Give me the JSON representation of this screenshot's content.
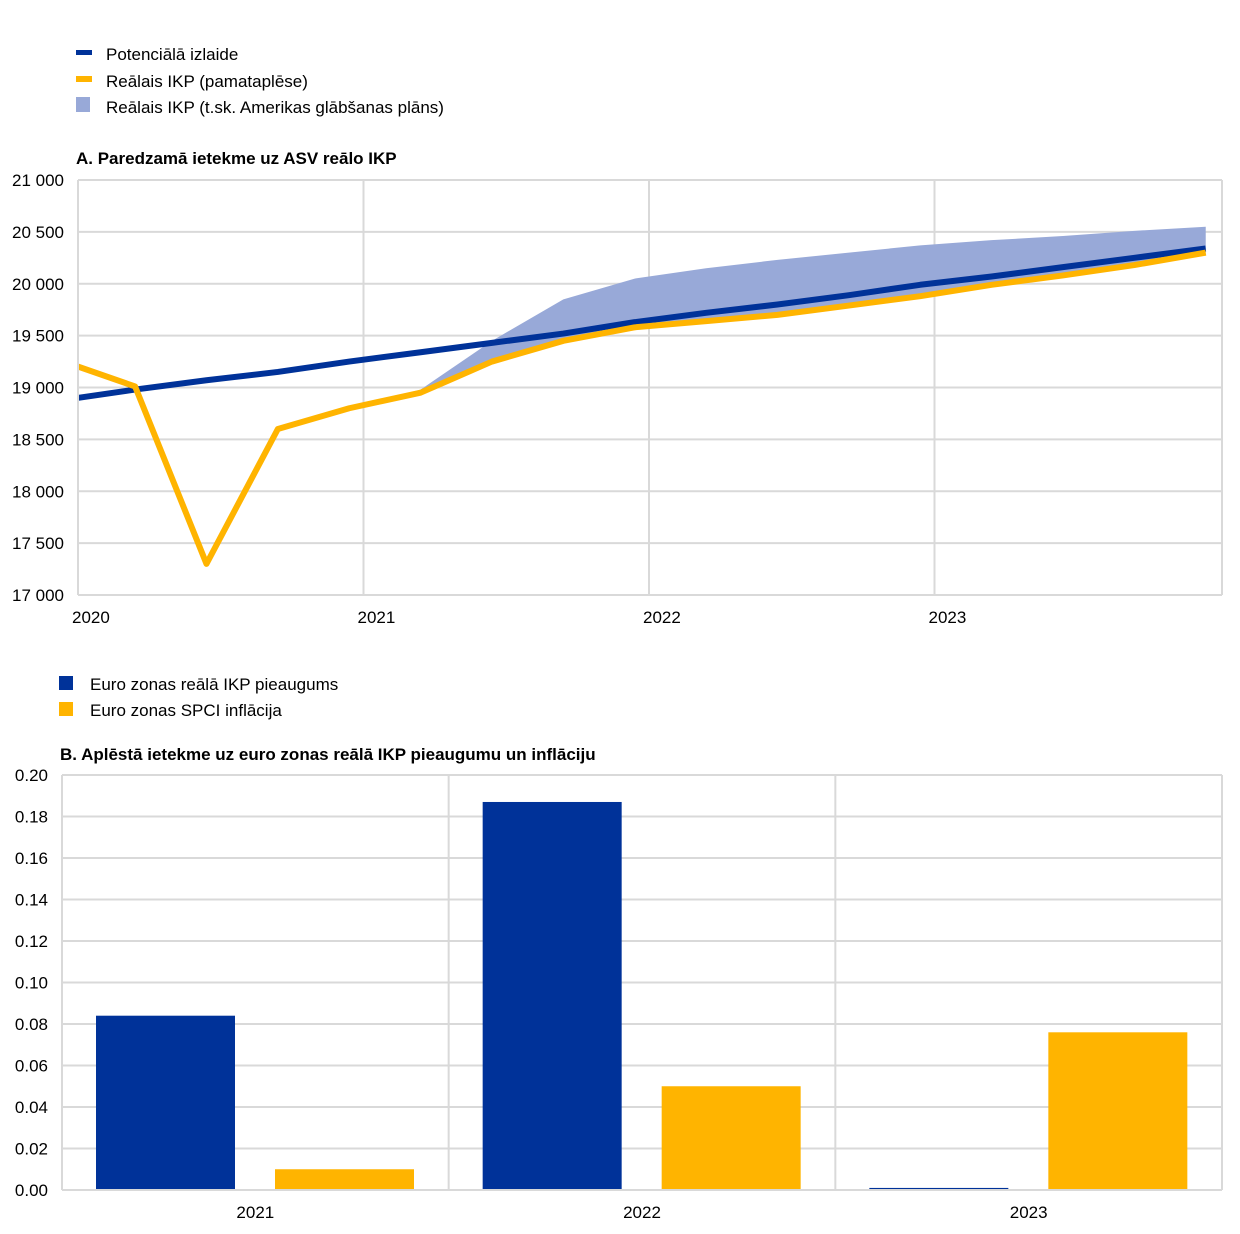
{
  "colors": {
    "blue": "#003299",
    "yellow": "#FFB400",
    "band": "#98A9D8",
    "grid": "#D9D9D9"
  },
  "chart_data": [
    {
      "type": "line",
      "title": "A. Paredzamā ietekme uz ASV reālo IKP",
      "legend": [
        {
          "label": "Potenciālā izlaide",
          "color": "#003299",
          "kind": "line"
        },
        {
          "label": "Reālais IKP (pamataplēse)",
          "color": "#FFB400",
          "kind": "line"
        },
        {
          "label": "Reālais IKP (t.sk. Amerikas glābšanas plāns)",
          "color": "#98A9D8",
          "kind": "area"
        }
      ],
      "legend_position": "top-left",
      "grid": true,
      "ylim": [
        17000,
        21000
      ],
      "yticks": [
        "17 000",
        "17 500",
        "18 000",
        "18 500",
        "19 000",
        "19 500",
        "20 000",
        "20 500",
        "21 000"
      ],
      "xticks": [
        "2020",
        "2021",
        "2022",
        "2023"
      ],
      "x": [
        "2019-Q4",
        "2020-Q1",
        "2020-Q2",
        "2020-Q3",
        "2020-Q4",
        "2021-Q1",
        "2021-Q2",
        "2021-Q3",
        "2021-Q4",
        "2022-Q1",
        "2022-Q2",
        "2022-Q3",
        "2022-Q4",
        "2023-Q1",
        "2023-Q2",
        "2023-Q3",
        "2023-Q4"
      ],
      "series": [
        {
          "name": "Potenciālā izlaide",
          "values": [
            18880,
            18980,
            19070,
            19150,
            19250,
            19340,
            19430,
            19520,
            19630,
            19720,
            19800,
            19890,
            19990,
            20070,
            20160,
            20250,
            20340
          ]
        },
        {
          "name": "Reālais IKP (pamataplēse)",
          "values": [
            19250,
            19010,
            17300,
            18600,
            18800,
            18950,
            19250,
            19450,
            19580,
            19640,
            19700,
            19790,
            19880,
            19990,
            20080,
            20180,
            20300
          ]
        },
        {
          "name": "Reālais IKP (t.sk. Amerikas glābšanas plāns)",
          "values": [
            19250,
            19010,
            17300,
            18600,
            18800,
            18980,
            19450,
            19850,
            20050,
            20150,
            20230,
            20300,
            20370,
            20420,
            20460,
            20510,
            20550
          ]
        }
      ]
    },
    {
      "type": "bar",
      "title": "B. Aplēstā ietekme uz euro zonas reālā IKP pieaugumu un inflāciju",
      "legend": [
        {
          "label": "Euro zonas reālā IKP pieaugums",
          "color": "#003299"
        },
        {
          "label": "Euro zonas SPCI inflācija",
          "color": "#FFB400"
        }
      ],
      "legend_position": "top-left",
      "grid": true,
      "ylim": [
        0,
        0.2
      ],
      "yticks": [
        "0.00",
        "0.02",
        "0.04",
        "0.06",
        "0.08",
        "0.10",
        "0.12",
        "0.14",
        "0.16",
        "0.18",
        "0.20"
      ],
      "categories": [
        "2021",
        "2022",
        "2023"
      ],
      "series": [
        {
          "name": "Euro zonas reālā IKP pieaugums",
          "values": [
            0.084,
            0.187,
            0.001
          ]
        },
        {
          "name": "Euro zonas SPCI inflācija",
          "values": [
            0.01,
            0.05,
            0.076
          ]
        }
      ]
    }
  ]
}
